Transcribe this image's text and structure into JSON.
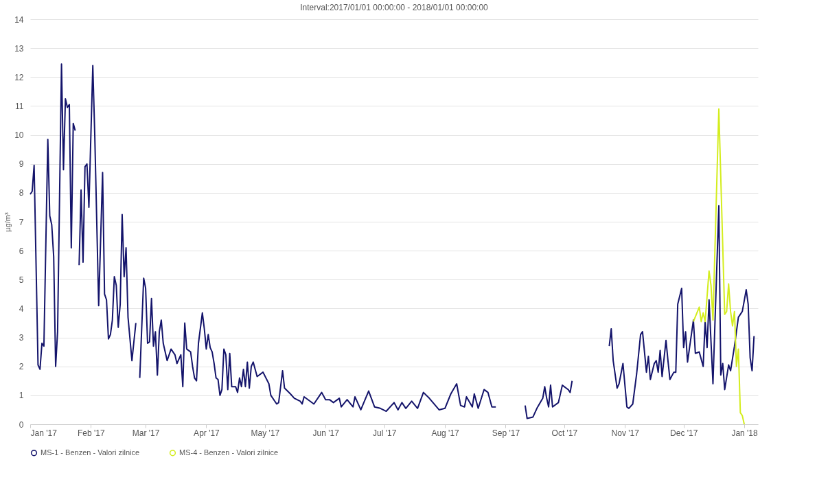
{
  "chart_data": {
    "type": "line",
    "title": "Interval:2017/01/01 00:00:00 - 2018/01/01 00:00:00",
    "ylabel": "µg/m³",
    "xlim": [
      "2017-01-01",
      "2018-01-08"
    ],
    "xticks": [
      {
        "value": "2017-01-01",
        "label": "Jan '17"
      },
      {
        "value": "2017-02-01",
        "label": "Feb '17"
      },
      {
        "value": "2017-03-01",
        "label": "Mar '17"
      },
      {
        "value": "2017-04-01",
        "label": "Apr '17"
      },
      {
        "value": "2017-05-01",
        "label": "May '17"
      },
      {
        "value": "2017-06-01",
        "label": "Jun '17"
      },
      {
        "value": "2017-07-01",
        "label": "Jul '17"
      },
      {
        "value": "2017-08-01",
        "label": "Aug '17"
      },
      {
        "value": "2017-09-01",
        "label": "Sep '17"
      },
      {
        "value": "2017-10-01",
        "label": "Oct '17"
      },
      {
        "value": "2017-11-01",
        "label": "Nov '17"
      },
      {
        "value": "2017-12-01",
        "label": "Dec '17"
      },
      {
        "value": "2018-01-01",
        "label": "Jan '18"
      }
    ],
    "ylim": [
      0,
      14
    ],
    "yticks": [
      0,
      1,
      2,
      3,
      4,
      5,
      6,
      7,
      8,
      9,
      10,
      11,
      12,
      13,
      14
    ],
    "grid": "y",
    "legend": "bottom",
    "marker": "none",
    "line_style": "solid",
    "series": [
      {
        "name": "MS-1 - Benzen - Valori zilnice",
        "color": "#14146b",
        "x": [
          "2017-01-01",
          "2017-01-02",
          "2017-01-03",
          "2017-01-05",
          "2017-01-06",
          "2017-01-07",
          "2017-01-08",
          "2017-01-10",
          "2017-01-11",
          "2017-01-12",
          "2017-01-13",
          "2017-01-14",
          "2017-01-15",
          "2017-01-17",
          "2017-01-18",
          "2017-01-19",
          "2017-01-20",
          "2017-01-21",
          "2017-01-22",
          "2017-01-23",
          "2017-01-24",
          "2017-01-25",
          "2017-01-26",
          "2017-01-27",
          "2017-01-28",
          "2017-01-29",
          "2017-01-30",
          "2017-01-31",
          "2017-02-02",
          "2017-02-03",
          "2017-02-05",
          "2017-02-07",
          "2017-02-08",
          "2017-02-09",
          "2017-02-10",
          "2017-02-11",
          "2017-02-12",
          "2017-02-13",
          "2017-02-14",
          "2017-02-15",
          "2017-02-16",
          "2017-02-17",
          "2017-02-18",
          "2017-02-19",
          "2017-02-20",
          "2017-02-22",
          "2017-02-24",
          "2017-02-25",
          "2017-02-26",
          "2017-02-28",
          "2017-03-01",
          "2017-03-02",
          "2017-03-03",
          "2017-03-04",
          "2017-03-05",
          "2017-03-06",
          "2017-03-07",
          "2017-03-08",
          "2017-03-09",
          "2017-03-10",
          "2017-03-12",
          "2017-03-14",
          "2017-03-16",
          "2017-03-17",
          "2017-03-19",
          "2017-03-20",
          "2017-03-21",
          "2017-03-22",
          "2017-03-24",
          "2017-03-25",
          "2017-03-26",
          "2017-03-27",
          "2017-03-28",
          "2017-03-30",
          "2017-03-31",
          "2017-04-01",
          "2017-04-02",
          "2017-04-03",
          "2017-04-04",
          "2017-04-05",
          "2017-04-06",
          "2017-04-07",
          "2017-04-08",
          "2017-04-09",
          "2017-04-10",
          "2017-04-11",
          "2017-04-12",
          "2017-04-13",
          "2017-04-14",
          "2017-04-16",
          "2017-04-17",
          "2017-04-18",
          "2017-04-19",
          "2017-04-20",
          "2017-04-21",
          "2017-04-22",
          "2017-04-23",
          "2017-04-24",
          "2017-04-25",
          "2017-04-27",
          "2017-04-30",
          "2017-05-03",
          "2017-05-04",
          "2017-05-07",
          "2017-05-08",
          "2017-05-10",
          "2017-05-11",
          "2017-05-14",
          "2017-05-16",
          "2017-05-19",
          "2017-05-20",
          "2017-05-21",
          "2017-05-24",
          "2017-05-26",
          "2017-05-30",
          "2017-06-01",
          "2017-06-03",
          "2017-06-05",
          "2017-06-08",
          "2017-06-09",
          "2017-06-12",
          "2017-06-15",
          "2017-06-16",
          "2017-06-19",
          "2017-06-23",
          "2017-06-26",
          "2017-06-29",
          "2017-07-02",
          "2017-07-06",
          "2017-07-08",
          "2017-07-10",
          "2017-07-12",
          "2017-07-15",
          "2017-07-18",
          "2017-07-21",
          "2017-07-24",
          "2017-07-29",
          "2017-08-01",
          "2017-08-04",
          "2017-08-07",
          "2017-08-09",
          "2017-08-11",
          "2017-08-12",
          "2017-08-15",
          "2017-08-16",
          "2017-08-18",
          "2017-08-21",
          "2017-08-23",
          "2017-08-25",
          "2017-08-27",
          "2017-09-01",
          "2017-09-11",
          "2017-09-12",
          "2017-09-15",
          "2017-09-17",
          "2017-09-20",
          "2017-09-21",
          "2017-09-22",
          "2017-09-23",
          "2017-09-24",
          "2017-09-25",
          "2017-09-28",
          "2017-09-30",
          "2017-10-03",
          "2017-10-04",
          "2017-10-05",
          "2017-10-15",
          "2017-10-24",
          "2017-10-25",
          "2017-10-26",
          "2017-10-28",
          "2017-10-29",
          "2017-10-31",
          "2017-11-02",
          "2017-11-03",
          "2017-11-05",
          "2017-11-07",
          "2017-11-09",
          "2017-11-10",
          "2017-11-12",
          "2017-11-13",
          "2017-11-14",
          "2017-11-16",
          "2017-11-17",
          "2017-11-18",
          "2017-11-19",
          "2017-11-20",
          "2017-11-22",
          "2017-11-23",
          "2017-11-24",
          "2017-11-26",
          "2017-11-27",
          "2017-11-28",
          "2017-11-30",
          "2017-12-01",
          "2017-12-02",
          "2017-12-03",
          "2017-12-06",
          "2017-12-07",
          "2017-12-09",
          "2017-12-11",
          "2017-12-12",
          "2017-12-13",
          "2017-12-14",
          "2017-12-16",
          "2017-12-19",
          "2017-12-20",
          "2017-12-21",
          "2017-12-22",
          "2017-12-24",
          "2017-12-25",
          "2017-12-27",
          "2017-12-29",
          "2017-12-31",
          "2018-01-02",
          "2018-01-03",
          "2018-01-04",
          "2018-01-05",
          "2018-01-06"
        ],
        "values": [
          7.95,
          8.05,
          8.95,
          2.05,
          1.9,
          2.8,
          2.7,
          9.85,
          7.2,
          6.9,
          5.8,
          2.0,
          3.2,
          12.45,
          8.8,
          11.25,
          10.95,
          11.05,
          6.1,
          10.4,
          10.15,
          null,
          5.5,
          8.1,
          5.6,
          8.9,
          9.0,
          7.5,
          12.4,
          10.0,
          4.1,
          8.7,
          4.5,
          4.3,
          2.95,
          3.1,
          3.6,
          5.1,
          4.8,
          3.35,
          4.15,
          7.25,
          5.1,
          6.1,
          3.7,
          2.2,
          3.5,
          null,
          1.6,
          5.05,
          4.7,
          2.8,
          2.85,
          4.35,
          2.7,
          3.2,
          1.7,
          3.2,
          3.6,
          2.8,
          2.2,
          2.6,
          2.4,
          2.1,
          2.4,
          1.3,
          3.5,
          2.6,
          2.5,
          2.0,
          1.6,
          1.5,
          2.8,
          3.85,
          3.3,
          2.6,
          3.1,
          2.65,
          2.5,
          2.1,
          1.6,
          1.55,
          1.0,
          1.2,
          2.6,
          2.4,
          1.2,
          2.45,
          1.3,
          1.3,
          1.1,
          1.6,
          1.3,
          1.9,
          1.3,
          2.15,
          1.25,
          2.0,
          2.15,
          1.65,
          1.8,
          1.4,
          1.0,
          0.7,
          0.75,
          1.85,
          1.25,
          1.05,
          0.9,
          0.8,
          0.7,
          0.95,
          0.8,
          0.7,
          1.1,
          0.85,
          0.85,
          0.75,
          0.9,
          0.6,
          0.85,
          0.6,
          0.95,
          0.5,
          1.15,
          0.6,
          0.55,
          0.45,
          0.75,
          0.5,
          0.75,
          0.55,
          0.8,
          0.55,
          1.1,
          0.9,
          0.5,
          0.55,
          1.05,
          1.4,
          0.65,
          0.6,
          0.95,
          0.6,
          1.05,
          0.55,
          1.2,
          1.1,
          0.6,
          0.6,
          null,
          0.65,
          0.2,
          0.25,
          0.55,
          0.9,
          1.3,
          0.9,
          0.6,
          1.35,
          0.6,
          0.75,
          1.35,
          1.2,
          1.1,
          1.5,
          null,
          2.7,
          3.3,
          2.2,
          1.25,
          1.4,
          2.1,
          0.6,
          0.55,
          0.7,
          1.75,
          3.1,
          3.2,
          1.8,
          2.35,
          1.55,
          2.1,
          2.2,
          1.8,
          2.55,
          1.65,
          2.9,
          2.2,
          1.55,
          1.8,
          1.8,
          4.15,
          4.7,
          2.65,
          3.2,
          2.15,
          3.6,
          2.45,
          2.5,
          2.0,
          3.55,
          2.65,
          4.3,
          1.4,
          7.55,
          1.7,
          2.1,
          1.2,
          2.05,
          1.85,
          2.7,
          3.7,
          3.9,
          4.65,
          4.15,
          2.3,
          1.85,
          3.05
        ]
      },
      {
        "name": "MS-4 - Benzen - Valori zilnice",
        "color": "#d4ed1e",
        "x": [
          "2017-12-06",
          "2017-12-09",
          "2017-12-10",
          "2017-12-11",
          "2017-12-12",
          "2017-12-14",
          "2017-12-15",
          "2017-12-16",
          "2017-12-19",
          "2017-12-22",
          "2017-12-23",
          "2017-12-24",
          "2017-12-25",
          "2017-12-26",
          "2017-12-27",
          "2017-12-28",
          "2017-12-29",
          "2017-12-30",
          "2017-12-31",
          "2018-01-01"
        ],
        "values": [
          3.55,
          4.05,
          3.55,
          3.85,
          3.55,
          5.3,
          4.8,
          3.6,
          10.9,
          3.8,
          3.9,
          4.85,
          3.9,
          3.4,
          3.9,
          2.0,
          2.6,
          0.4,
          0.3,
          0.0
        ]
      }
    ]
  }
}
